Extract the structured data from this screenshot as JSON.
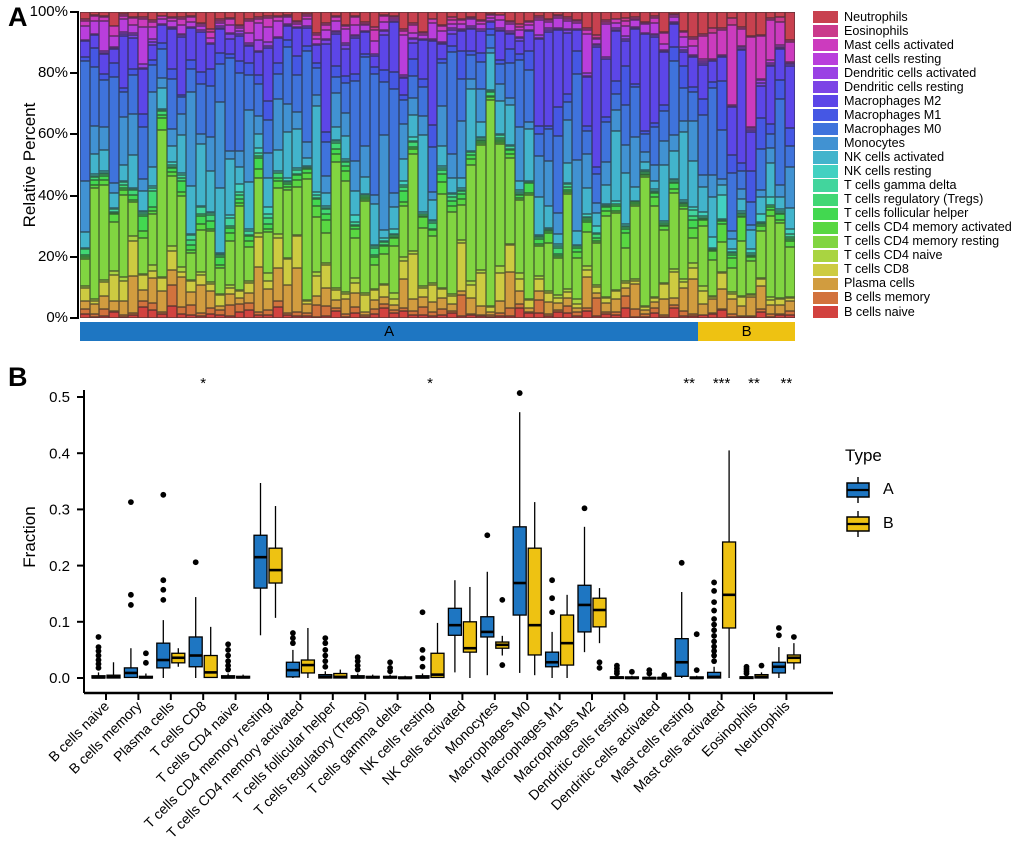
{
  "page": {
    "background": "#ffffff"
  },
  "panelA": {
    "label": "A",
    "y_axis_title": "Relative Percent",
    "y_tick_labels": [
      "0%",
      "20%",
      "40%",
      "60%",
      "80%",
      "100%"
    ],
    "group_strip": {
      "groups": [
        {
          "label": "A",
          "color": "#1E76C2"
        },
        {
          "label": "B",
          "color": "#EEC212"
        }
      ]
    }
  },
  "panelB": {
    "label": "B",
    "y_axis_title": "Fraction",
    "y_tick_labels": [
      "0.0",
      "0.1",
      "0.2",
      "0.3",
      "0.4",
      "0.5"
    ],
    "legend": {
      "title": "Type",
      "items": [
        {
          "label": "A",
          "color": "#1E76C2"
        },
        {
          "label": "B",
          "color": "#EEC212"
        }
      ]
    }
  },
  "chart_data": [
    {
      "type": "bar",
      "subtype": "stacked-relative-percent",
      "panel": "A",
      "title": "",
      "xlabel": "",
      "ylabel": "Relative Percent",
      "ylim": [
        0,
        100
      ],
      "y_ticks_percent": [
        0,
        20,
        40,
        60,
        80,
        100
      ],
      "categories_bottom_to_top": [
        "B cells naive",
        "B cells memory",
        "Plasma cells",
        "T cells CD8",
        "T cells CD4 naive",
        "T cells CD4 memory resting",
        "T cells CD4 memory activated",
        "T cells follicular helper",
        "T cells regulatory (Tregs)",
        "T cells gamma delta",
        "NK cells resting",
        "NK cells activated",
        "Monocytes",
        "Macrophages M0",
        "Macrophages M1",
        "Macrophages M2",
        "Dendritic cells resting",
        "Dendritic cells activated",
        "Mast cells resting",
        "Mast cells activated",
        "Eosinophils",
        "Neutrophils"
      ],
      "colors": [
        "#D2423F",
        "#D2723D",
        "#D19C3F",
        "#CDCB41",
        "#A9D441",
        "#81D541",
        "#59D742",
        "#42D850",
        "#41D774",
        "#42D59D",
        "#42D1C1",
        "#42B4CC",
        "#4192D2",
        "#3F73DC",
        "#4557E4",
        "#5C46E8",
        "#7C44E6",
        "#9A41E4",
        "#B93EDC",
        "#CC3BBE",
        "#CA3A8C",
        "#C8414F"
      ],
      "legend_order": "top-to-bottom is reverse of categories (Neutrophils first)",
      "groups": [
        {
          "name": "A",
          "n_samples": 64,
          "color": "#1E76C2",
          "mean_fractions": [
            0.012,
            0.016,
            0.045,
            0.038,
            0.008,
            0.21,
            0.018,
            0.012,
            0.008,
            0.005,
            0.006,
            0.09,
            0.085,
            0.17,
            0.035,
            0.13,
            0.004,
            0.004,
            0.03,
            0.012,
            0.004,
            0.025
          ]
        },
        {
          "name": "B",
          "n_samples": 10,
          "color": "#EEC212",
          "mean_fractions": [
            0.008,
            0.005,
            0.04,
            0.015,
            0.005,
            0.195,
            0.025,
            0.008,
            0.005,
            0.004,
            0.02,
            0.06,
            0.06,
            0.11,
            0.07,
            0.125,
            0.004,
            0.004,
            0.004,
            0.15,
            0.008,
            0.038
          ]
        }
      ],
      "random_seed": 20
    },
    {
      "type": "boxplot",
      "panel": "B",
      "title": "",
      "xlabel": "",
      "ylabel": "Fraction",
      "ylim": [
        0,
        0.52
      ],
      "y_ticks": [
        0,
        0.1,
        0.2,
        0.3,
        0.4,
        0.5
      ],
      "categories": [
        "B cells naive",
        "B cells memory",
        "Plasma cells",
        "T cells CD8",
        "T cells CD4 naive",
        "T cells CD4 memory resting",
        "T cells CD4 memory activated",
        "T cells follicular helper",
        "T cells regulatory (Tregs)",
        "T cells gamma delta",
        "NK cells resting",
        "NK cells activated",
        "Monocytes",
        "Macrophages M0",
        "Macrophages M1",
        "Macrophages M2",
        "Dendritic cells resting",
        "Dendritic cells activated",
        "Mast cells resting",
        "Mast cells activated",
        "Eosinophils",
        "Neutrophils"
      ],
      "box_format": "[whisker_low, q1, median, q3, whisker_high]",
      "series": [
        {
          "name": "A",
          "color": "#1E76C2",
          "boxes": [
            [
              0,
              0,
              0.001,
              0.004,
              0.01
            ],
            [
              0,
              0.001,
              0.009,
              0.018,
              0.053
            ],
            [
              0,
              0.018,
              0.032,
              0.062,
              0.103
            ],
            [
              0,
              0.02,
              0.04,
              0.073,
              0.144
            ],
            [
              0,
              0,
              0.001,
              0.004,
              0.008
            ],
            [
              0.076,
              0.16,
              0.215,
              0.254,
              0.347
            ],
            [
              0,
              0.002,
              0.014,
              0.028,
              0.05
            ],
            [
              0,
              0,
              0.002,
              0.006,
              0.012
            ],
            [
              0,
              0,
              0.001,
              0.004,
              0.008
            ],
            [
              0,
              0,
              0.001,
              0.003,
              0.006
            ],
            [
              0,
              0,
              0.001,
              0.004,
              0.008
            ],
            [
              0.01,
              0.076,
              0.094,
              0.124,
              0.174
            ],
            [
              0.005,
              0.073,
              0.082,
              0.109,
              0.189
            ],
            [
              0.009,
              0.112,
              0.169,
              0.269,
              0.473
            ],
            [
              0,
              0.02,
              0.028,
              0.046,
              0.082
            ],
            [
              0.046,
              0.082,
              0.13,
              0.165,
              0.269
            ],
            [
              0,
              0,
              0.001,
              0.002,
              0.004
            ],
            [
              0,
              0,
              0,
              0.001,
              0.003
            ],
            [
              0,
              0.003,
              0.028,
              0.07,
              0.153
            ],
            [
              0,
              0,
              0.002,
              0.01,
              0.02
            ],
            [
              0,
              0,
              0.001,
              0.002,
              0.004
            ],
            [
              0,
              0.009,
              0.02,
              0.028,
              0.055
            ]
          ],
          "outliers": [
            [
              0.018,
              0.025,
              0.032,
              0.04,
              0.048,
              0.055,
              0.073
            ],
            [
              0.13,
              0.148,
              0.313
            ],
            [
              0.139,
              0.157,
              0.174,
              0.326
            ],
            [
              0.206
            ],
            [
              0.015,
              0.022,
              0.03,
              0.04,
              0.05,
              0.06
            ],
            [],
            [
              0.062,
              0.071,
              0.08
            ],
            [
              0.02,
              0.03,
              0.04,
              0.05,
              0.062,
              0.071
            ],
            [
              0.015,
              0.022,
              0.03,
              0.037
            ],
            [
              0.012,
              0.018,
              0.028
            ],
            [
              0.02,
              0.035,
              0.05,
              0.117
            ],
            [],
            [
              0.254
            ],
            [
              0.507
            ],
            [
              0.117,
              0.142,
              0.174
            ],
            [
              0.302
            ],
            [
              0.008,
              0.012,
              0.017,
              0.022
            ],
            [
              0.008,
              0.014
            ],
            [
              0.205
            ],
            [
              0.03,
              0.04,
              0.048,
              0.056,
              0.065,
              0.075,
              0.085,
              0.095,
              0.105,
              0.12,
              0.135,
              0.155,
              0.17
            ],
            [
              0.008,
              0.012,
              0.016,
              0.02
            ],
            [
              0.076,
              0.089
            ]
          ]
        },
        {
          "name": "B",
          "color": "#EEC212",
          "boxes": [
            [
              0,
              0,
              0.002,
              0.005,
              0.028
            ],
            [
              0,
              0,
              0.001,
              0.003,
              0.008
            ],
            [
              0.02,
              0.027,
              0.036,
              0.044,
              0.053
            ],
            [
              0,
              0.001,
              0.01,
              0.04,
              0.091
            ],
            [
              0,
              0,
              0.001,
              0.003,
              0.006
            ],
            [
              0.107,
              0.169,
              0.192,
              0.231,
              0.306
            ],
            [
              0,
              0.009,
              0.023,
              0.032,
              0.089
            ],
            [
              0,
              0,
              0.002,
              0.008,
              0.015
            ],
            [
              0,
              0,
              0.001,
              0.003,
              0.006
            ],
            [
              0,
              0,
              0,
              0.002,
              0.004
            ],
            [
              0,
              0.001,
              0.006,
              0.044,
              0.098
            ],
            [
              0,
              0.046,
              0.053,
              0.1,
              0.162
            ],
            [
              0.04,
              0.053,
              0.059,
              0.064,
              0.075
            ],
            [
              0.005,
              0.041,
              0.094,
              0.231,
              0.313
            ],
            [
              0,
              0.023,
              0.062,
              0.112,
              0.148
            ],
            [
              0.062,
              0.091,
              0.121,
              0.142,
              0.16
            ],
            [
              0,
              0,
              0,
              0.002,
              0.004
            ],
            [
              0,
              0,
              0,
              0.001,
              0.003
            ],
            [
              0,
              0,
              0,
              0.002,
              0.004
            ],
            [
              0,
              0.089,
              0.148,
              0.242,
              0.405
            ],
            [
              0,
              0,
              0.002,
              0.006,
              0.01
            ],
            [
              0.015,
              0.027,
              0.036,
              0.041,
              0.062
            ]
          ],
          "outliers": [
            [],
            [
              0.027,
              0.044
            ],
            [],
            [],
            [],
            [],
            [],
            [],
            [],
            [],
            [],
            [],
            [
              0.023,
              0.139
            ],
            [],
            [],
            [
              0.018,
              0.028
            ],
            [
              0.011
            ],
            [
              0.005
            ],
            [
              0.014,
              0.078
            ],
            [],
            [
              0.022
            ],
            [
              0.073
            ]
          ]
        }
      ],
      "significance_markers": [
        {
          "category": "T cells CD8",
          "label": "*"
        },
        {
          "category": "NK cells resting",
          "label": "*"
        },
        {
          "category": "Mast cells resting",
          "label": "**"
        },
        {
          "category": "Mast cells activated",
          "label": "***"
        },
        {
          "category": "Eosinophils",
          "label": "**"
        },
        {
          "category": "Neutrophils",
          "label": "**"
        }
      ],
      "legend_title": "Type",
      "legend_position": "right"
    }
  ]
}
